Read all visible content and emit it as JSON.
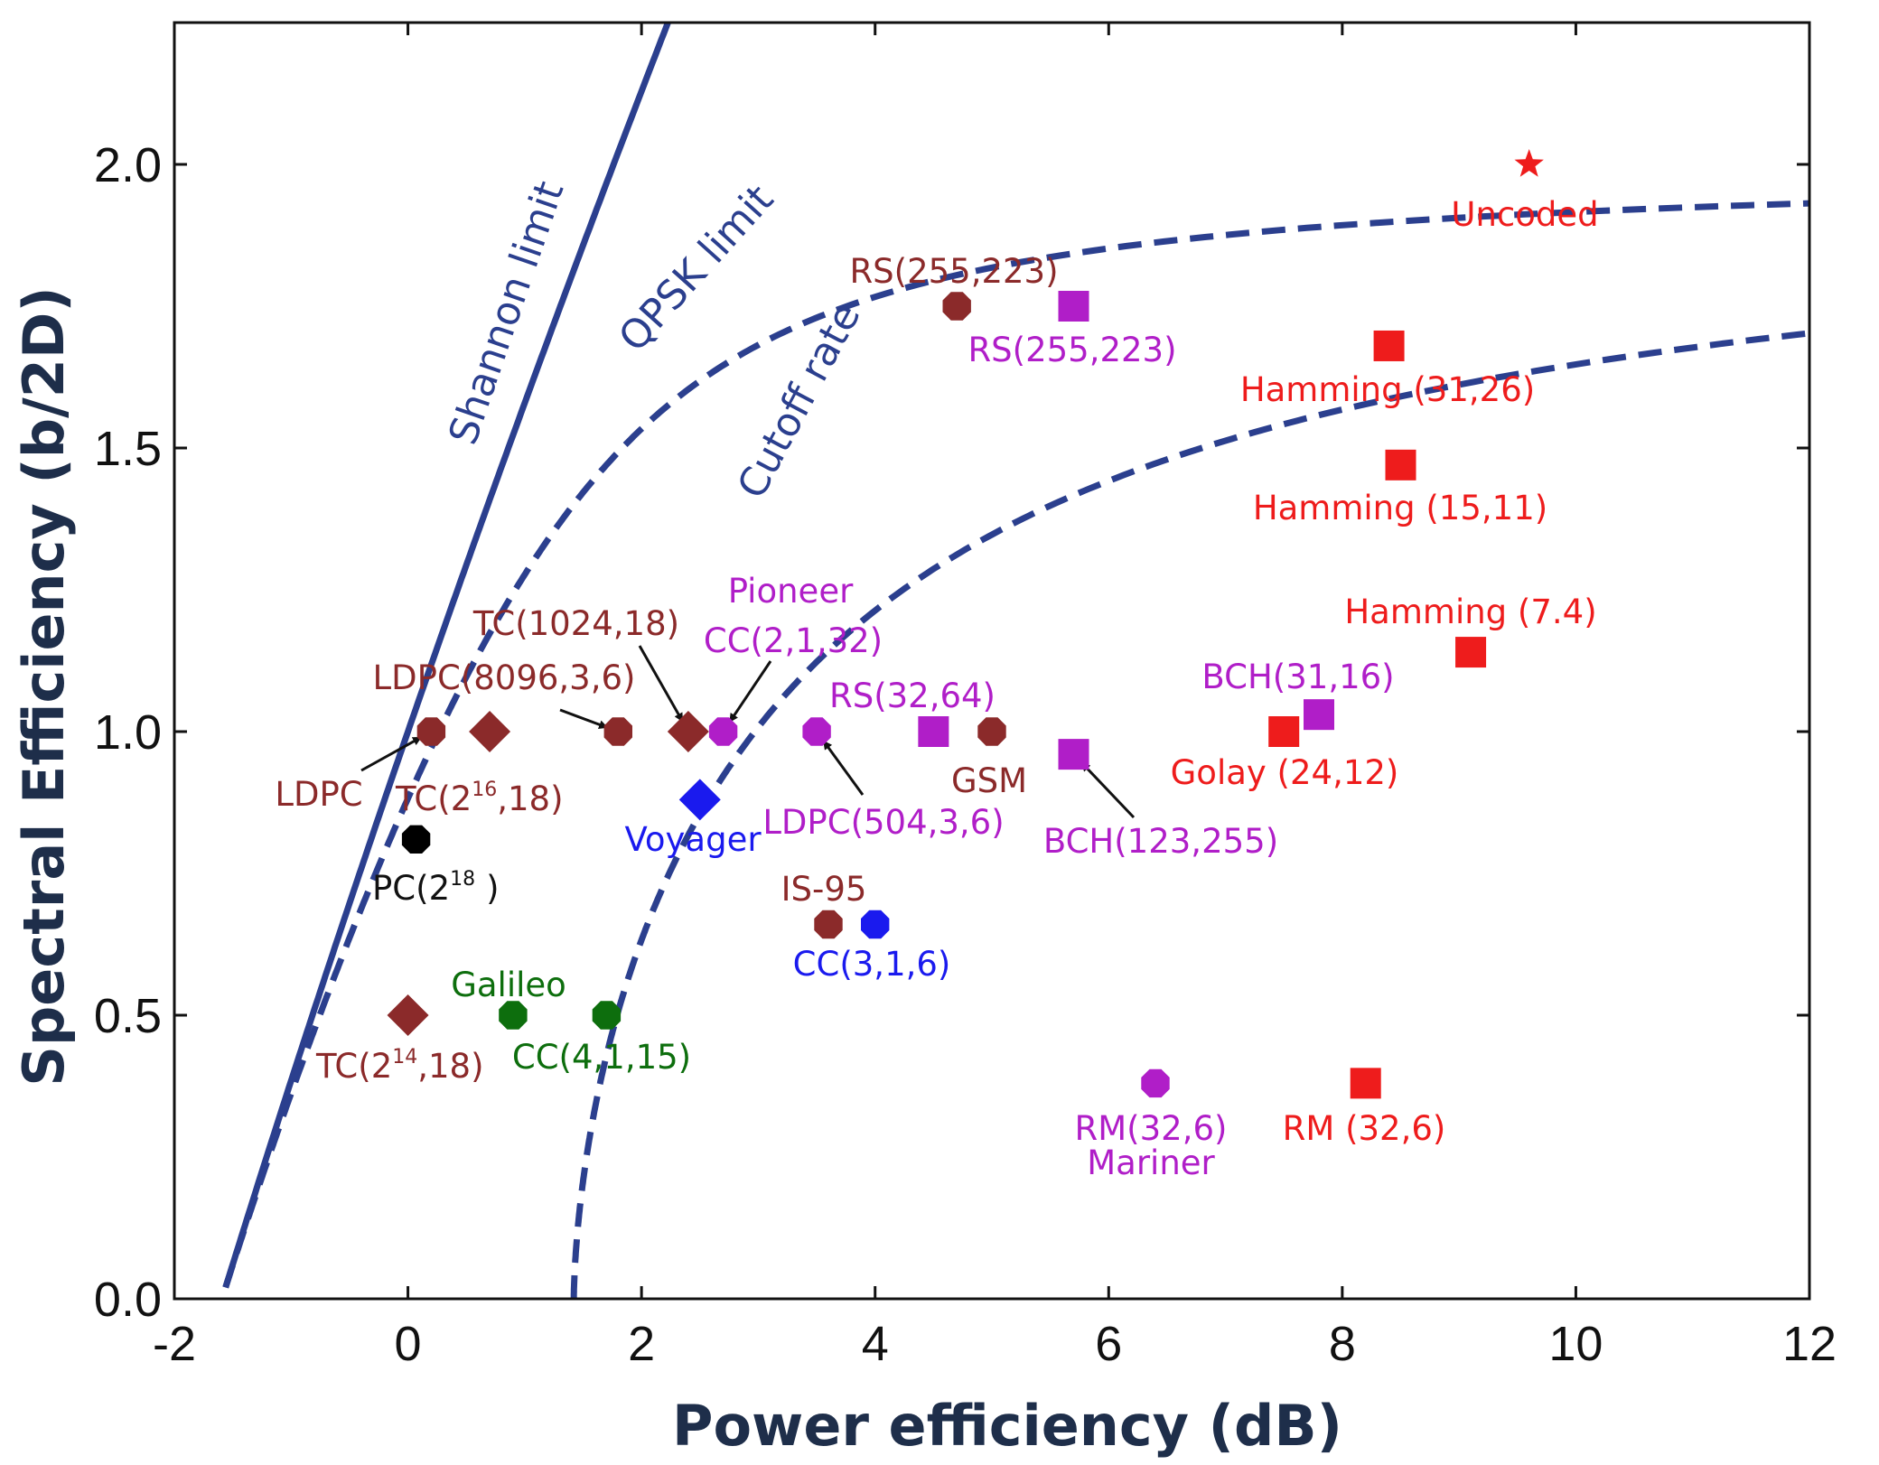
{
  "chart_data": {
    "type": "scatter",
    "xlabel": "Power efficiency (dB)",
    "ylabel": "Spectral Efficiency (b/2D)",
    "xlim": [
      -2,
      12
    ],
    "ylim": [
      0,
      2.25
    ],
    "xticks": [
      "-2",
      "0",
      "2",
      "4",
      "6",
      "8",
      "10",
      "12"
    ],
    "yticks": [
      "0.0",
      "0.5",
      "1.0",
      "1.5",
      "2.0"
    ],
    "grid": false,
    "colors": {
      "curve": "#2b3f8e",
      "darkred": "#8b2a2a",
      "purple": "#b01ec8",
      "red": "#ee1c1c",
      "blue": "#1a1aee",
      "green": "#0d6e0d",
      "black": "#000000"
    },
    "curves": [
      {
        "label": "Shannon limit",
        "style": "solid"
      },
      {
        "label": "QPSK limit",
        "style": "dashed"
      },
      {
        "label": "Cutoff rate",
        "style": "dashed"
      }
    ],
    "points": [
      {
        "x": 9.6,
        "y": 2.0,
        "marker": "star",
        "color": "red",
        "label": "Uncoded"
      },
      {
        "x": 4.7,
        "y": 1.75,
        "marker": "octagon",
        "color": "darkred",
        "label": "RS(255,223)"
      },
      {
        "x": 5.7,
        "y": 1.75,
        "marker": "square",
        "color": "purple",
        "label": "RS(255,223)"
      },
      {
        "x": 8.4,
        "y": 1.68,
        "marker": "square",
        "color": "red",
        "label": "Hamming (31,26)"
      },
      {
        "x": 8.5,
        "y": 1.47,
        "marker": "square",
        "color": "red",
        "label": "Hamming (15,11)"
      },
      {
        "x": 9.1,
        "y": 1.14,
        "marker": "square",
        "color": "red",
        "label": "Hamming (7.4)"
      },
      {
        "x": 7.8,
        "y": 1.03,
        "marker": "square",
        "color": "purple",
        "label": "BCH(31,16)"
      },
      {
        "x": 7.5,
        "y": 1.0,
        "marker": "square",
        "color": "red",
        "label": "Golay (24,12)"
      },
      {
        "x": 5.7,
        "y": 0.96,
        "marker": "square",
        "color": "purple",
        "label": "BCH(123,255)"
      },
      {
        "x": 5.0,
        "y": 1.0,
        "marker": "octagon",
        "color": "darkred",
        "label": "GSM"
      },
      {
        "x": 4.5,
        "y": 1.0,
        "marker": "square",
        "color": "purple",
        "label": "RS(32,64)"
      },
      {
        "x": 3.5,
        "y": 1.0,
        "marker": "octagon",
        "color": "purple",
        "label": "LDPC(504,3,6)"
      },
      {
        "x": 2.7,
        "y": 1.0,
        "marker": "octagon",
        "color": "purple",
        "label": "Pioneer CC(2,1,32)"
      },
      {
        "x": 2.4,
        "y": 1.0,
        "marker": "diamond",
        "color": "darkred",
        "label": "TC(1024,18)"
      },
      {
        "x": 1.8,
        "y": 1.0,
        "marker": "octagon",
        "color": "darkred",
        "label": "LDPC(8096,3,6)"
      },
      {
        "x": 0.7,
        "y": 1.0,
        "marker": "diamond",
        "color": "darkred",
        "label": "TC(2^16,18)"
      },
      {
        "x": 0.2,
        "y": 1.0,
        "marker": "octagon",
        "color": "darkred",
        "label": "LDPC"
      },
      {
        "x": 2.5,
        "y": 0.88,
        "marker": "diamond",
        "color": "blue",
        "label": "Voyager"
      },
      {
        "x": 0.07,
        "y": 0.81,
        "marker": "octagon",
        "color": "black",
        "label": "PC(2^18)"
      },
      {
        "x": 3.6,
        "y": 0.66,
        "marker": "octagon",
        "color": "darkred",
        "label": "IS-95"
      },
      {
        "x": 4.0,
        "y": 0.66,
        "marker": "octagon",
        "color": "blue",
        "label": "CC(3,1,6)"
      },
      {
        "x": 0.0,
        "y": 0.5,
        "marker": "diamond",
        "color": "darkred",
        "label": "TC(2^14,18)"
      },
      {
        "x": 0.9,
        "y": 0.5,
        "marker": "octagon",
        "color": "green",
        "label": "Galileo"
      },
      {
        "x": 1.7,
        "y": 0.5,
        "marker": "octagon",
        "color": "green",
        "label": "CC(4,1,15)"
      },
      {
        "x": 6.4,
        "y": 0.38,
        "marker": "octagon",
        "color": "purple",
        "label": "RM(32,6) Mariner"
      },
      {
        "x": 8.2,
        "y": 0.38,
        "marker": "square",
        "color": "red",
        "label": "RM (32,6)"
      }
    ]
  },
  "text": {
    "shannon": "Shannon limit",
    "qpsk": "QPSK limit",
    "cutoff": "Cutoff rate",
    "uncoded": "Uncoded",
    "rs255_a": "RS(255,223)",
    "rs255_b": "RS(255,223)",
    "ham3126": "Hamming (31,26)",
    "ham1511": "Hamming (15,11)",
    "ham74": "Hamming (7.4)",
    "bch3116": "BCH(31,16)",
    "golay": "Golay (24,12)",
    "bch123": "BCH(123,255)",
    "gsm": "GSM",
    "rs3264": "RS(32,64)",
    "ldpc504": "LDPC(504,3,6)",
    "pioneer": "Pioneer",
    "cc2132": "CC(2,1,32)",
    "tc1024": "TC(1024,18)",
    "ldpc8096": "LDPC(8096,3,6)",
    "ldpc": "LDPC",
    "tc216_a": "TC(2",
    "tc216_sup": "16",
    "tc216_b": ",18)",
    "voyager": "Voyager",
    "pc218_a": "PC(2",
    "pc218_sup": "18",
    "pc218_b": ")",
    "is95": "IS-95",
    "cc316": "CC(3,1,6)",
    "tc214_a": "TC(2",
    "tc214_sup": "14",
    "tc214_b": ",18)",
    "galileo": "Galileo",
    "cc4115": "CC(4,1,15)",
    "rm326_p": "RM(32,6)",
    "mariner": "Mariner",
    "rm326_r": "RM (32,6)"
  }
}
